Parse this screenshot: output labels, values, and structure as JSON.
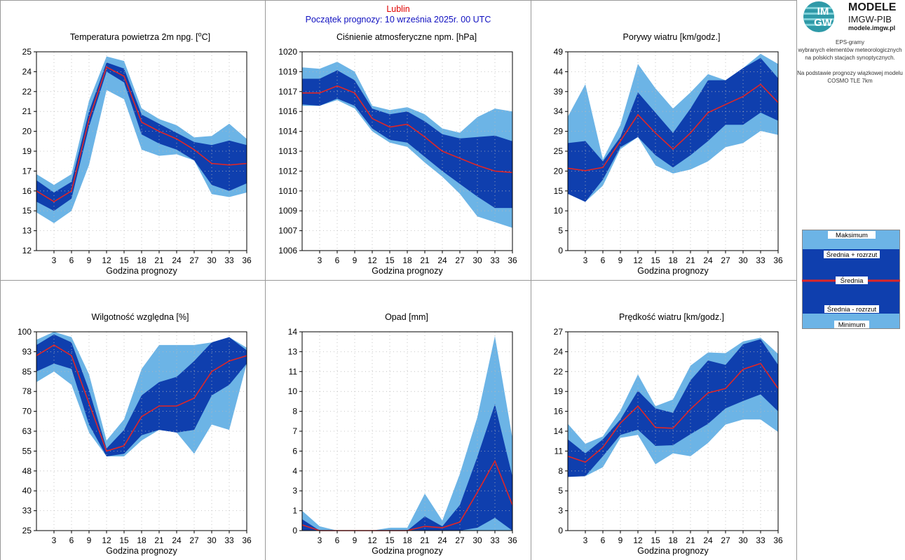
{
  "header": {
    "city": "Lublin",
    "start": "Początek prognozy: 10 września 2025r. 00 UTC"
  },
  "logo": {
    "mark": "IM GW",
    "title": "MODELE",
    "subtitle": "IMGW-PIB",
    "url": "modele.imgw.pl"
  },
  "description": {
    "line1": "EPS-gramy",
    "line2": "wybranych elementów meteorologicznych",
    "line3": "na polskich stacjach  synoptycznych.",
    "line4": "Na podstawie prognozy wiązkowej modelu",
    "line5": "COSMO TLE 7km"
  },
  "legend": {
    "max": "Maksimum",
    "mean_plus": "Średnia + rozrzut",
    "mean": "Średnia",
    "mean_minus": "Średnia - rozrzut",
    "min": "Minimum"
  },
  "colors": {
    "outer_band": "#6cb4e6",
    "inner_band": "#0f3fae",
    "mean_line": "#e02626",
    "grid": "#b8b8b8",
    "panel_border": "#999999"
  },
  "chart_data": [
    {
      "type": "area",
      "title": "Temperatura powietrza 2m npg. [°C]",
      "xlabel": "Godzina prognozy",
      "ylabel": "",
      "x": [
        0,
        3,
        6,
        9,
        12,
        15,
        18,
        21,
        24,
        27,
        30,
        33,
        36
      ],
      "xticks": [
        "3",
        "6",
        "9",
        "12",
        "15",
        "18",
        "21",
        "24",
        "27",
        "30",
        "33",
        "36"
      ],
      "ylim": [
        12,
        25
      ],
      "yticks": [
        "12",
        "13",
        "15",
        "16",
        "17",
        "19",
        "20",
        "21",
        "22",
        "24",
        "25"
      ],
      "series": [
        {
          "role": "max",
          "values": [
            17.0,
            16.3,
            17.0,
            21.8,
            24.7,
            24.4,
            21.3,
            20.6,
            20.2,
            19.4,
            19.5,
            20.3,
            19.3
          ]
        },
        {
          "role": "mean_plus",
          "values": [
            16.6,
            15.8,
            16.5,
            21.1,
            24.3,
            23.9,
            20.9,
            20.3,
            19.7,
            19.1,
            18.9,
            19.2,
            18.9
          ]
        },
        {
          "role": "mean",
          "values": [
            15.9,
            15.2,
            15.9,
            20.6,
            24.0,
            23.4,
            20.4,
            19.8,
            19.3,
            18.6,
            17.7,
            17.6,
            17.7
          ]
        },
        {
          "role": "mean_minus",
          "values": [
            15.2,
            14.6,
            15.4,
            20.1,
            23.7,
            23.0,
            19.6,
            19.0,
            18.6,
            17.9,
            16.3,
            15.9,
            16.4
          ]
        },
        {
          "role": "min",
          "values": [
            14.5,
            13.8,
            14.6,
            17.6,
            22.5,
            21.9,
            18.6,
            18.2,
            18.3,
            17.9,
            15.7,
            15.5,
            15.8
          ]
        }
      ]
    },
    {
      "type": "area",
      "title": "Ciśnienie atmosferyczne npm. [hPa]",
      "xlabel": "Godzina prognozy",
      "ylabel": "",
      "x": [
        0,
        3,
        6,
        9,
        12,
        15,
        18,
        21,
        24,
        27,
        30,
        33,
        36
      ],
      "xticks": [
        "3",
        "6",
        "9",
        "12",
        "15",
        "18",
        "21",
        "24",
        "27",
        "30",
        "33",
        "36"
      ],
      "ylim": [
        1006,
        1020
      ],
      "yticks": [
        "1006",
        "1007",
        "1009",
        "1010",
        "1012",
        "1013",
        "1014",
        "1016",
        "1017",
        "1019",
        "1020"
      ],
      "series": [
        {
          "role": "max",
          "values": [
            1018.9,
            1018.8,
            1019.3,
            1018.6,
            1016.2,
            1015.9,
            1016.1,
            1015.6,
            1014.6,
            1014.3,
            1015.4,
            1016.0,
            1015.8
          ]
        },
        {
          "role": "mean_plus",
          "values": [
            1018.1,
            1018.1,
            1018.7,
            1018.0,
            1016.0,
            1015.6,
            1015.8,
            1015.1,
            1014.2,
            1013.9,
            1014.0,
            1014.1,
            1013.7
          ]
        },
        {
          "role": "mean",
          "values": [
            1017.1,
            1017.1,
            1017.6,
            1017.1,
            1015.3,
            1014.7,
            1014.9,
            1014.0,
            1013.0,
            1012.5,
            1012.0,
            1011.6,
            1011.5
          ]
        },
        {
          "role": "mean_minus",
          "values": [
            1016.3,
            1016.2,
            1016.7,
            1016.2,
            1014.6,
            1013.8,
            1013.6,
            1012.6,
            1011.6,
            1010.7,
            1009.8,
            1009.0,
            1009.0
          ]
        },
        {
          "role": "min",
          "values": [
            1016.2,
            1016.2,
            1016.6,
            1016.0,
            1014.4,
            1013.6,
            1013.3,
            1012.2,
            1011.2,
            1010.0,
            1008.4,
            1008.0,
            1007.6
          ]
        }
      ]
    },
    {
      "type": "area",
      "title": "Porywy wiatru [km/godz.]",
      "xlabel": "Godzina prognozy",
      "ylabel": "",
      "x": [
        0,
        3,
        6,
        9,
        12,
        15,
        18,
        21,
        24,
        27,
        30,
        33,
        36
      ],
      "xticks": [
        "3",
        "6",
        "9",
        "12",
        "15",
        "18",
        "21",
        "24",
        "27",
        "30",
        "33",
        "36"
      ],
      "ylim": [
        0,
        49
      ],
      "yticks": [
        "0",
        "5",
        "10",
        "15",
        "20",
        "25",
        "29",
        "34",
        "39",
        "44",
        "49"
      ],
      "series": [
        {
          "role": "max",
          "values": [
            33.0,
            41.0,
            22.5,
            31.0,
            46.0,
            40.0,
            35.0,
            39.0,
            43.5,
            42.0,
            45.0,
            48.5,
            46.0
          ]
        },
        {
          "role": "mean_plus",
          "values": [
            26.5,
            27.0,
            22.0,
            28.0,
            39.0,
            34.0,
            29.0,
            35.0,
            42.0,
            42.0,
            45.0,
            47.5,
            42.5
          ]
        },
        {
          "role": "mean",
          "values": [
            20.3,
            19.7,
            20.5,
            27.0,
            33.5,
            29.0,
            25.0,
            29.0,
            34.0,
            36.0,
            38.0,
            41.0,
            36.5
          ]
        },
        {
          "role": "mean_minus",
          "values": [
            14.0,
            12.0,
            17.5,
            25.5,
            28.0,
            23.5,
            20.5,
            23.5,
            27.0,
            31.0,
            31.0,
            34.0,
            32.0
          ]
        },
        {
          "role": "min",
          "values": [
            14.0,
            12.0,
            16.0,
            25.0,
            28.0,
            21.0,
            19.0,
            20.0,
            22.0,
            25.5,
            26.5,
            29.5,
            28.5
          ]
        }
      ]
    },
    {
      "type": "area",
      "title": "Wilgotność względna [%]",
      "xlabel": "Godzina prognozy",
      "ylabel": "",
      "x": [
        0,
        3,
        6,
        9,
        12,
        15,
        18,
        21,
        24,
        27,
        30,
        33,
        36
      ],
      "xticks": [
        "3",
        "6",
        "9",
        "12",
        "15",
        "18",
        "21",
        "24",
        "27",
        "30",
        "33",
        "36"
      ],
      "ylim": [
        25,
        100
      ],
      "yticks": [
        "25",
        "33",
        "40",
        "48",
        "55",
        "63",
        "70",
        "78",
        "85",
        "93",
        "100"
      ],
      "series": [
        {
          "role": "max",
          "values": [
            97,
            100,
            98,
            84,
            59,
            67,
            86,
            95,
            95,
            95,
            96,
            98,
            94
          ]
        },
        {
          "role": "mean_plus",
          "values": [
            95,
            99,
            96,
            78,
            56,
            63,
            76,
            81,
            83,
            89,
            96,
            98,
            93
          ]
        },
        {
          "role": "mean",
          "values": [
            91,
            95,
            91,
            73,
            55,
            57,
            68,
            72,
            72,
            75,
            85,
            89,
            91
          ]
        },
        {
          "role": "mean_minus",
          "values": [
            85,
            88,
            86,
            65,
            53,
            54,
            61,
            63,
            62,
            63,
            76,
            80,
            88
          ]
        },
        {
          "role": "min",
          "values": [
            81,
            85,
            80,
            62,
            53,
            53,
            59,
            63,
            62,
            54,
            65,
            63,
            88
          ]
        }
      ]
    },
    {
      "type": "area",
      "title": "Opad [mm]",
      "xlabel": "Godzina prognozy",
      "ylabel": "",
      "x": [
        0,
        3,
        6,
        9,
        12,
        15,
        18,
        21,
        24,
        27,
        30,
        33,
        36
      ],
      "xticks": [
        "3",
        "6",
        "9",
        "12",
        "15",
        "18",
        "21",
        "24",
        "27",
        "30",
        "33",
        "36"
      ],
      "ylim": [
        0,
        14
      ],
      "yticks": [
        "0",
        "1",
        "3",
        "4",
        "6",
        "7",
        "8",
        "10",
        "11",
        "13",
        "14"
      ],
      "series": [
        {
          "role": "max",
          "values": [
            1.4,
            0.3,
            0.0,
            0.0,
            0.0,
            0.2,
            0.2,
            2.6,
            0.7,
            4.0,
            8.0,
            13.7,
            6.5
          ]
        },
        {
          "role": "mean_plus",
          "values": [
            0.8,
            0.0,
            0.0,
            0.0,
            0.0,
            0.0,
            0.0,
            1.0,
            0.3,
            1.8,
            5.2,
            8.9,
            3.8
          ]
        },
        {
          "role": "mean",
          "values": [
            0.4,
            0.0,
            0.0,
            0.0,
            0.0,
            0.0,
            0.0,
            0.3,
            0.2,
            0.6,
            2.7,
            4.9,
            1.8
          ]
        },
        {
          "role": "mean_minus",
          "values": [
            0.0,
            0.0,
            0.0,
            0.0,
            0.0,
            0.0,
            0.0,
            0.0,
            0.0,
            0.0,
            0.2,
            0.9,
            0.0
          ]
        },
        {
          "role": "min",
          "values": [
            0.0,
            0.0,
            0.0,
            0.0,
            0.0,
            0.0,
            0.0,
            0.0,
            0.0,
            0.0,
            0.0,
            0.0,
            0.0
          ]
        }
      ]
    },
    {
      "type": "area",
      "title": "Prędkość wiatru [km/godz.]",
      "xlabel": "Godzina prognozy",
      "ylabel": "",
      "x": [
        0,
        3,
        6,
        9,
        12,
        15,
        18,
        21,
        24,
        27,
        30,
        33,
        36
      ],
      "xticks": [
        "3",
        "6",
        "9",
        "12",
        "15",
        "18",
        "21",
        "24",
        "27",
        "30",
        "33",
        "36"
      ],
      "ylim": [
        0,
        27
      ],
      "yticks": [
        "0",
        "3",
        "5",
        "8",
        "11",
        "14",
        "16",
        "19",
        "22",
        "24",
        "27"
      ],
      "series": [
        {
          "role": "max",
          "values": [
            14.5,
            11.8,
            12.8,
            16.3,
            21.2,
            16.9,
            17.8,
            22.4,
            24.2,
            24.1,
            25.7,
            26.2,
            24.0
          ]
        },
        {
          "role": "mean_plus",
          "values": [
            12.4,
            10.5,
            12.4,
            15.1,
            19.0,
            16.6,
            16.0,
            20.4,
            23.1,
            22.5,
            25.3,
            26.0,
            22.5
          ]
        },
        {
          "role": "mean",
          "values": [
            10.1,
            9.3,
            11.3,
            14.6,
            16.9,
            14.0,
            13.9,
            16.5,
            18.7,
            19.3,
            21.9,
            22.7,
            19.3
          ]
        },
        {
          "role": "mean_minus",
          "values": [
            7.3,
            7.4,
            10.1,
            13.0,
            13.7,
            11.5,
            11.6,
            13.1,
            14.5,
            16.6,
            17.6,
            18.5,
            16.2
          ]
        },
        {
          "role": "min",
          "values": [
            7.3,
            7.4,
            8.6,
            12.6,
            13.0,
            9.0,
            10.5,
            10.1,
            11.9,
            14.4,
            15.1,
            15.1,
            13.4
          ]
        }
      ]
    }
  ]
}
